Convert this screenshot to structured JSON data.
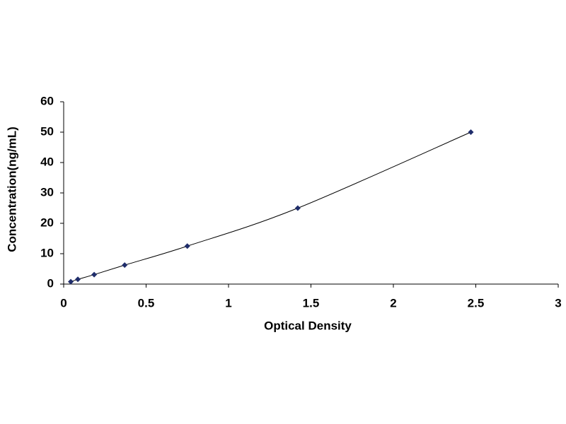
{
  "chart_data": {
    "type": "scatter",
    "x_label": "Optical Density",
    "y_label": "Concentration(ng/mL)",
    "x": [
      0.043,
      0.086,
      0.185,
      0.37,
      0.75,
      1.42,
      2.47
    ],
    "series": [
      {
        "color": "#1f2d6b",
        "values": [
          0.78,
          1.56,
          3.12,
          6.25,
          12.5,
          25,
          50
        ]
      }
    ],
    "line_color": "#000000",
    "xlim": [
      0,
      3
    ],
    "xticks": [
      0,
      0.5,
      1,
      1.5,
      2,
      2.5,
      3
    ],
    "ylim": [
      0,
      60
    ],
    "yticks": [
      0,
      10,
      20,
      30,
      40,
      50,
      60
    ],
    "grid": false
  }
}
